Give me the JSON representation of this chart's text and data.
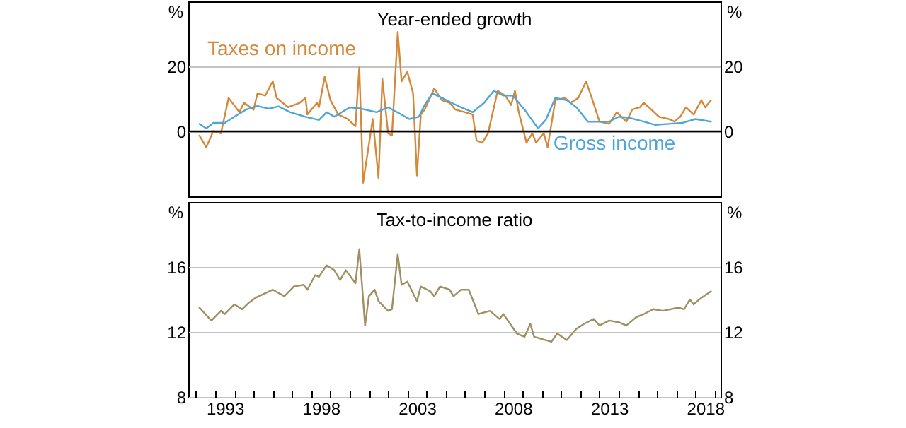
{
  "chart_data": [
    {
      "type": "line",
      "title": "Year-ended growth",
      "ylabel": "%",
      "y2label": "%",
      "xlim": [
        1991.6,
        2019.3
      ],
      "ylim": [
        -20,
        40
      ],
      "yticks": [
        0,
        20
      ],
      "y2lim": [
        -20,
        40
      ],
      "y2ticks": [
        0,
        20
      ],
      "grid": "y",
      "tick_labels": "y",
      "ref_lines": [
        {
          "axis": "y",
          "value": 0,
          "color": "#000000"
        }
      ],
      "series": [
        {
          "name": "Taxes on income",
          "color": "#d4883a",
          "x": [
            1992.18,
            1992.54,
            1992.9,
            1993.3,
            1993.7,
            1994.26,
            1994.5,
            1995.0,
            1995.2,
            1995.6,
            1996.0,
            1996.2,
            1996.8,
            1997.4,
            1997.7,
            1997.8,
            1998.3,
            1998.4,
            1998.7,
            1999.0,
            1999.4,
            1999.9,
            2000.3,
            2000.5,
            2000.7,
            2001.2,
            2001.5,
            2001.7,
            2002.0,
            2002.2,
            2002.5,
            2002.7,
            2003.0,
            2003.3,
            2003.5,
            2003.7,
            2003.9,
            2004.4,
            2004.8,
            2005.2,
            2005.5,
            2006.0,
            2006.4,
            2006.6,
            2006.9,
            2007.2,
            2007.7,
            2008.1,
            2008.4,
            2008.6,
            2008.8,
            2009.2,
            2009.5,
            2009.7,
            2010.1,
            2010.3,
            2010.7,
            2011.2,
            2011.5,
            2011.9,
            2012.3,
            2012.6,
            2013.0,
            2013.5,
            2013.9,
            2014.4,
            2014.7,
            2015.1,
            2015.3,
            2015.7,
            2016.1,
            2016.6,
            2016.9,
            2017.2,
            2017.5,
            2017.9,
            2018.3,
            2018.5,
            2018.8
          ],
          "values": [
            -1.3,
            -4.9,
            0.1,
            -0.6,
            10.3,
            5.9,
            8.8,
            6.7,
            11.7,
            11,
            15.4,
            10.3,
            7.4,
            8.8,
            10.3,
            5.2,
            8.8,
            7.4,
            16.8,
            9.6,
            5.2,
            3.8,
            1.6,
            19.7,
            -15.8,
            3.8,
            -14.3,
            16.1,
            -0.6,
            -1.3,
            30.6,
            15.4,
            18.3,
            11.7,
            -13.6,
            5.2,
            6.7,
            13.2,
            9.6,
            8.8,
            6.7,
            5.9,
            5.2,
            -2.8,
            -3.5,
            -0.6,
            12.5,
            11,
            8.1,
            12.5,
            5.9,
            -3.5,
            -0.6,
            -3.5,
            -0.6,
            -4.9,
            9.6,
            10.3,
            8.8,
            10.3,
            15.4,
            10.3,
            3,
            2.3,
            5.9,
            3,
            6.7,
            7.4,
            8.8,
            6.7,
            4.5,
            3.8,
            3,
            4.5,
            7.4,
            5.2,
            9.6,
            7.4,
            9.6
          ]
        },
        {
          "name": "Gross income",
          "color": "#4ea5d9",
          "x": [
            1992.18,
            1992.54,
            1992.9,
            1993.5,
            1994.0,
            1994.6,
            1995.2,
            1995.8,
            1996.3,
            1996.9,
            1997.7,
            1998.4,
            1998.8,
            1999.2,
            2000.0,
            2000.6,
            2001.4,
            2002.0,
            2002.6,
            2003.1,
            2003.6,
            2003.9,
            2004.3,
            2004.8,
            2005.3,
            2005.8,
            2006.4,
            2007.0,
            2007.5,
            2008.0,
            2008.5,
            2009.2,
            2009.8,
            2010.2,
            2010.7,
            2011.3,
            2011.8,
            2012.4,
            2013.0,
            2013.5,
            2014.0,
            2014.6,
            2015.3,
            2015.9,
            2016.6,
            2017.3,
            2018.0,
            2018.8
          ],
          "values": [
            2.3,
            0.9,
            2.6,
            2.6,
            4.5,
            6.7,
            7.8,
            7,
            7.7,
            5.9,
            4.5,
            3.5,
            5.9,
            4.5,
            7.4,
            7,
            5.9,
            7.4,
            5.5,
            3.8,
            4.5,
            8.1,
            11.7,
            10.3,
            8.8,
            7.4,
            5.9,
            8.8,
            12.5,
            11,
            11,
            5.9,
            0.9,
            3.5,
            10.3,
            9.6,
            7.4,
            3,
            3,
            3,
            4.5,
            4.1,
            3,
            2,
            2.3,
            2.6,
            3.8,
            3
          ]
        }
      ]
    },
    {
      "type": "line",
      "title": "Tax-to-income ratio",
      "ylabel": "%",
      "y2label": "%",
      "xlim": [
        1991.6,
        2019.3
      ],
      "ylim": [
        8,
        20
      ],
      "yticks": [
        8,
        12,
        16
      ],
      "y2lim": [
        8,
        20
      ],
      "y2ticks": [
        8,
        12,
        16
      ],
      "grid": "y",
      "xticks": [
        {
          "value": 1992,
          "label": null
        },
        {
          "value": 1993,
          "label": null
        },
        {
          "value": 1993.5,
          "label": "1993"
        },
        {
          "value": 1994,
          "label": null
        },
        {
          "value": 1995,
          "label": null
        },
        {
          "value": 1996,
          "label": null
        },
        {
          "value": 1997,
          "label": null
        },
        {
          "value": 1998,
          "label": null
        },
        {
          "value": 1998.5,
          "label": "1998"
        },
        {
          "value": 1999,
          "label": null
        },
        {
          "value": 2000,
          "label": null
        },
        {
          "value": 2001,
          "label": null
        },
        {
          "value": 2002,
          "label": null
        },
        {
          "value": 2003,
          "label": null
        },
        {
          "value": 2003.5,
          "label": "2003"
        },
        {
          "value": 2004,
          "label": null
        },
        {
          "value": 2005,
          "label": null
        },
        {
          "value": 2006,
          "label": null
        },
        {
          "value": 2007,
          "label": null
        },
        {
          "value": 2008,
          "label": null
        },
        {
          "value": 2008.5,
          "label": "2008"
        },
        {
          "value": 2009,
          "label": null
        },
        {
          "value": 2010,
          "label": null
        },
        {
          "value": 2011,
          "label": null
        },
        {
          "value": 2012,
          "label": null
        },
        {
          "value": 2013,
          "label": null
        },
        {
          "value": 2013.5,
          "label": "2013"
        },
        {
          "value": 2014,
          "label": null
        },
        {
          "value": 2015,
          "label": null
        },
        {
          "value": 2016,
          "label": null
        },
        {
          "value": 2017,
          "label": null
        },
        {
          "value": 2018,
          "label": null
        },
        {
          "value": 2018.5,
          "label": "2018"
        },
        {
          "value": 2019,
          "label": null
        }
      ],
      "series": [
        {
          "color": "#a08f62",
          "x": [
            1992.18,
            1992.8,
            1993.3,
            1993.5,
            1994.0,
            1994.4,
            1994.75,
            1995.1,
            1996.0,
            1996.6,
            1997.1,
            1997.6,
            1997.8,
            1998.2,
            1998.4,
            1998.8,
            1999.2,
            1999.5,
            1999.8,
            2000.3,
            2000.5,
            2000.8,
            2001.0,
            2001.3,
            2001.5,
            2002.0,
            2002.2,
            2002.5,
            2002.7,
            2003.0,
            2003.5,
            2003.7,
            2004.2,
            2004.4,
            2004.7,
            2005.2,
            2005.4,
            2005.8,
            2006.2,
            2006.7,
            2007.3,
            2007.8,
            2008.0,
            2008.7,
            2009.1,
            2009.4,
            2009.6,
            2010.5,
            2010.8,
            2011.3,
            2011.8,
            2012.2,
            2012.7,
            2013.0,
            2013.5,
            2014.0,
            2014.4,
            2014.9,
            2015.3,
            2015.8,
            2016.3,
            2017.1,
            2017.4,
            2017.7,
            2017.9,
            2018.3,
            2018.8
          ],
          "values": [
            13.5,
            12.7,
            13.3,
            13.1,
            13.7,
            13.4,
            13.8,
            14.1,
            14.6,
            14.2,
            14.8,
            14.9,
            14.6,
            15.5,
            15.4,
            16.1,
            15.8,
            15.2,
            15.8,
            15,
            17.1,
            12.4,
            14.2,
            14.6,
            13.9,
            13.3,
            13.4,
            16.8,
            14.9,
            15.1,
            13.9,
            14.8,
            14.5,
            14.2,
            14.8,
            14.6,
            14.2,
            14.6,
            14.6,
            13.1,
            13.3,
            12.8,
            13.1,
            11.9,
            11.7,
            12.5,
            11.7,
            11.4,
            11.9,
            11.5,
            12.2,
            12.5,
            12.8,
            12.4,
            12.7,
            12.6,
            12.4,
            12.9,
            13.1,
            13.4,
            13.3,
            13.5,
            13.4,
            14,
            13.7,
            14.1,
            14.5
          ]
        }
      ]
    }
  ]
}
